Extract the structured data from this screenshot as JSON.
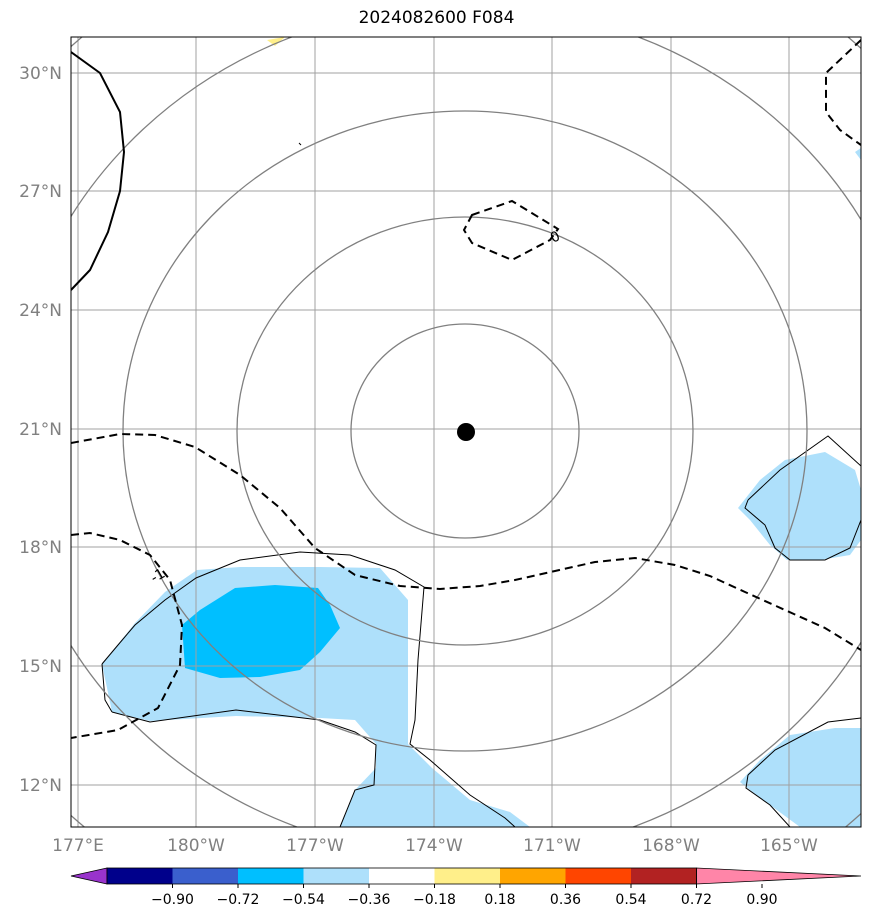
{
  "title": "2024082600 F084",
  "map": {
    "lat_ticks": [
      "30°N",
      "27°N",
      "24°N",
      "21°N",
      "18°N",
      "15°N",
      "12°N"
    ],
    "lon_ticks": [
      "177°E",
      "180°W",
      "177°W",
      "174°W",
      "171°W",
      "168°W",
      "165°W"
    ],
    "center_marker": {
      "lat": 20.9,
      "lon": "173.2°W"
    },
    "contour_labels": [
      "0",
      "-1"
    ],
    "colors": {
      "shade_light": "#aee0fb",
      "shade_mid": "#00bfff",
      "highlight": "#ffef8a",
      "gridline": "#a0a0a0",
      "circles": "#808080"
    }
  },
  "colorbar": {
    "ticks": [
      "−0.90",
      "−0.72",
      "−0.54",
      "−0.36",
      "−0.18",
      "0.18",
      "0.36",
      "0.54",
      "0.72",
      "0.90"
    ],
    "colors": [
      "#9933cc",
      "#00008b",
      "#3a5fcd",
      "#00bfff",
      "#aee0fb",
      "#ffffff",
      "#ffef8a",
      "#ffa500",
      "#ff4500",
      "#b22222",
      "#ff85a8"
    ]
  }
}
